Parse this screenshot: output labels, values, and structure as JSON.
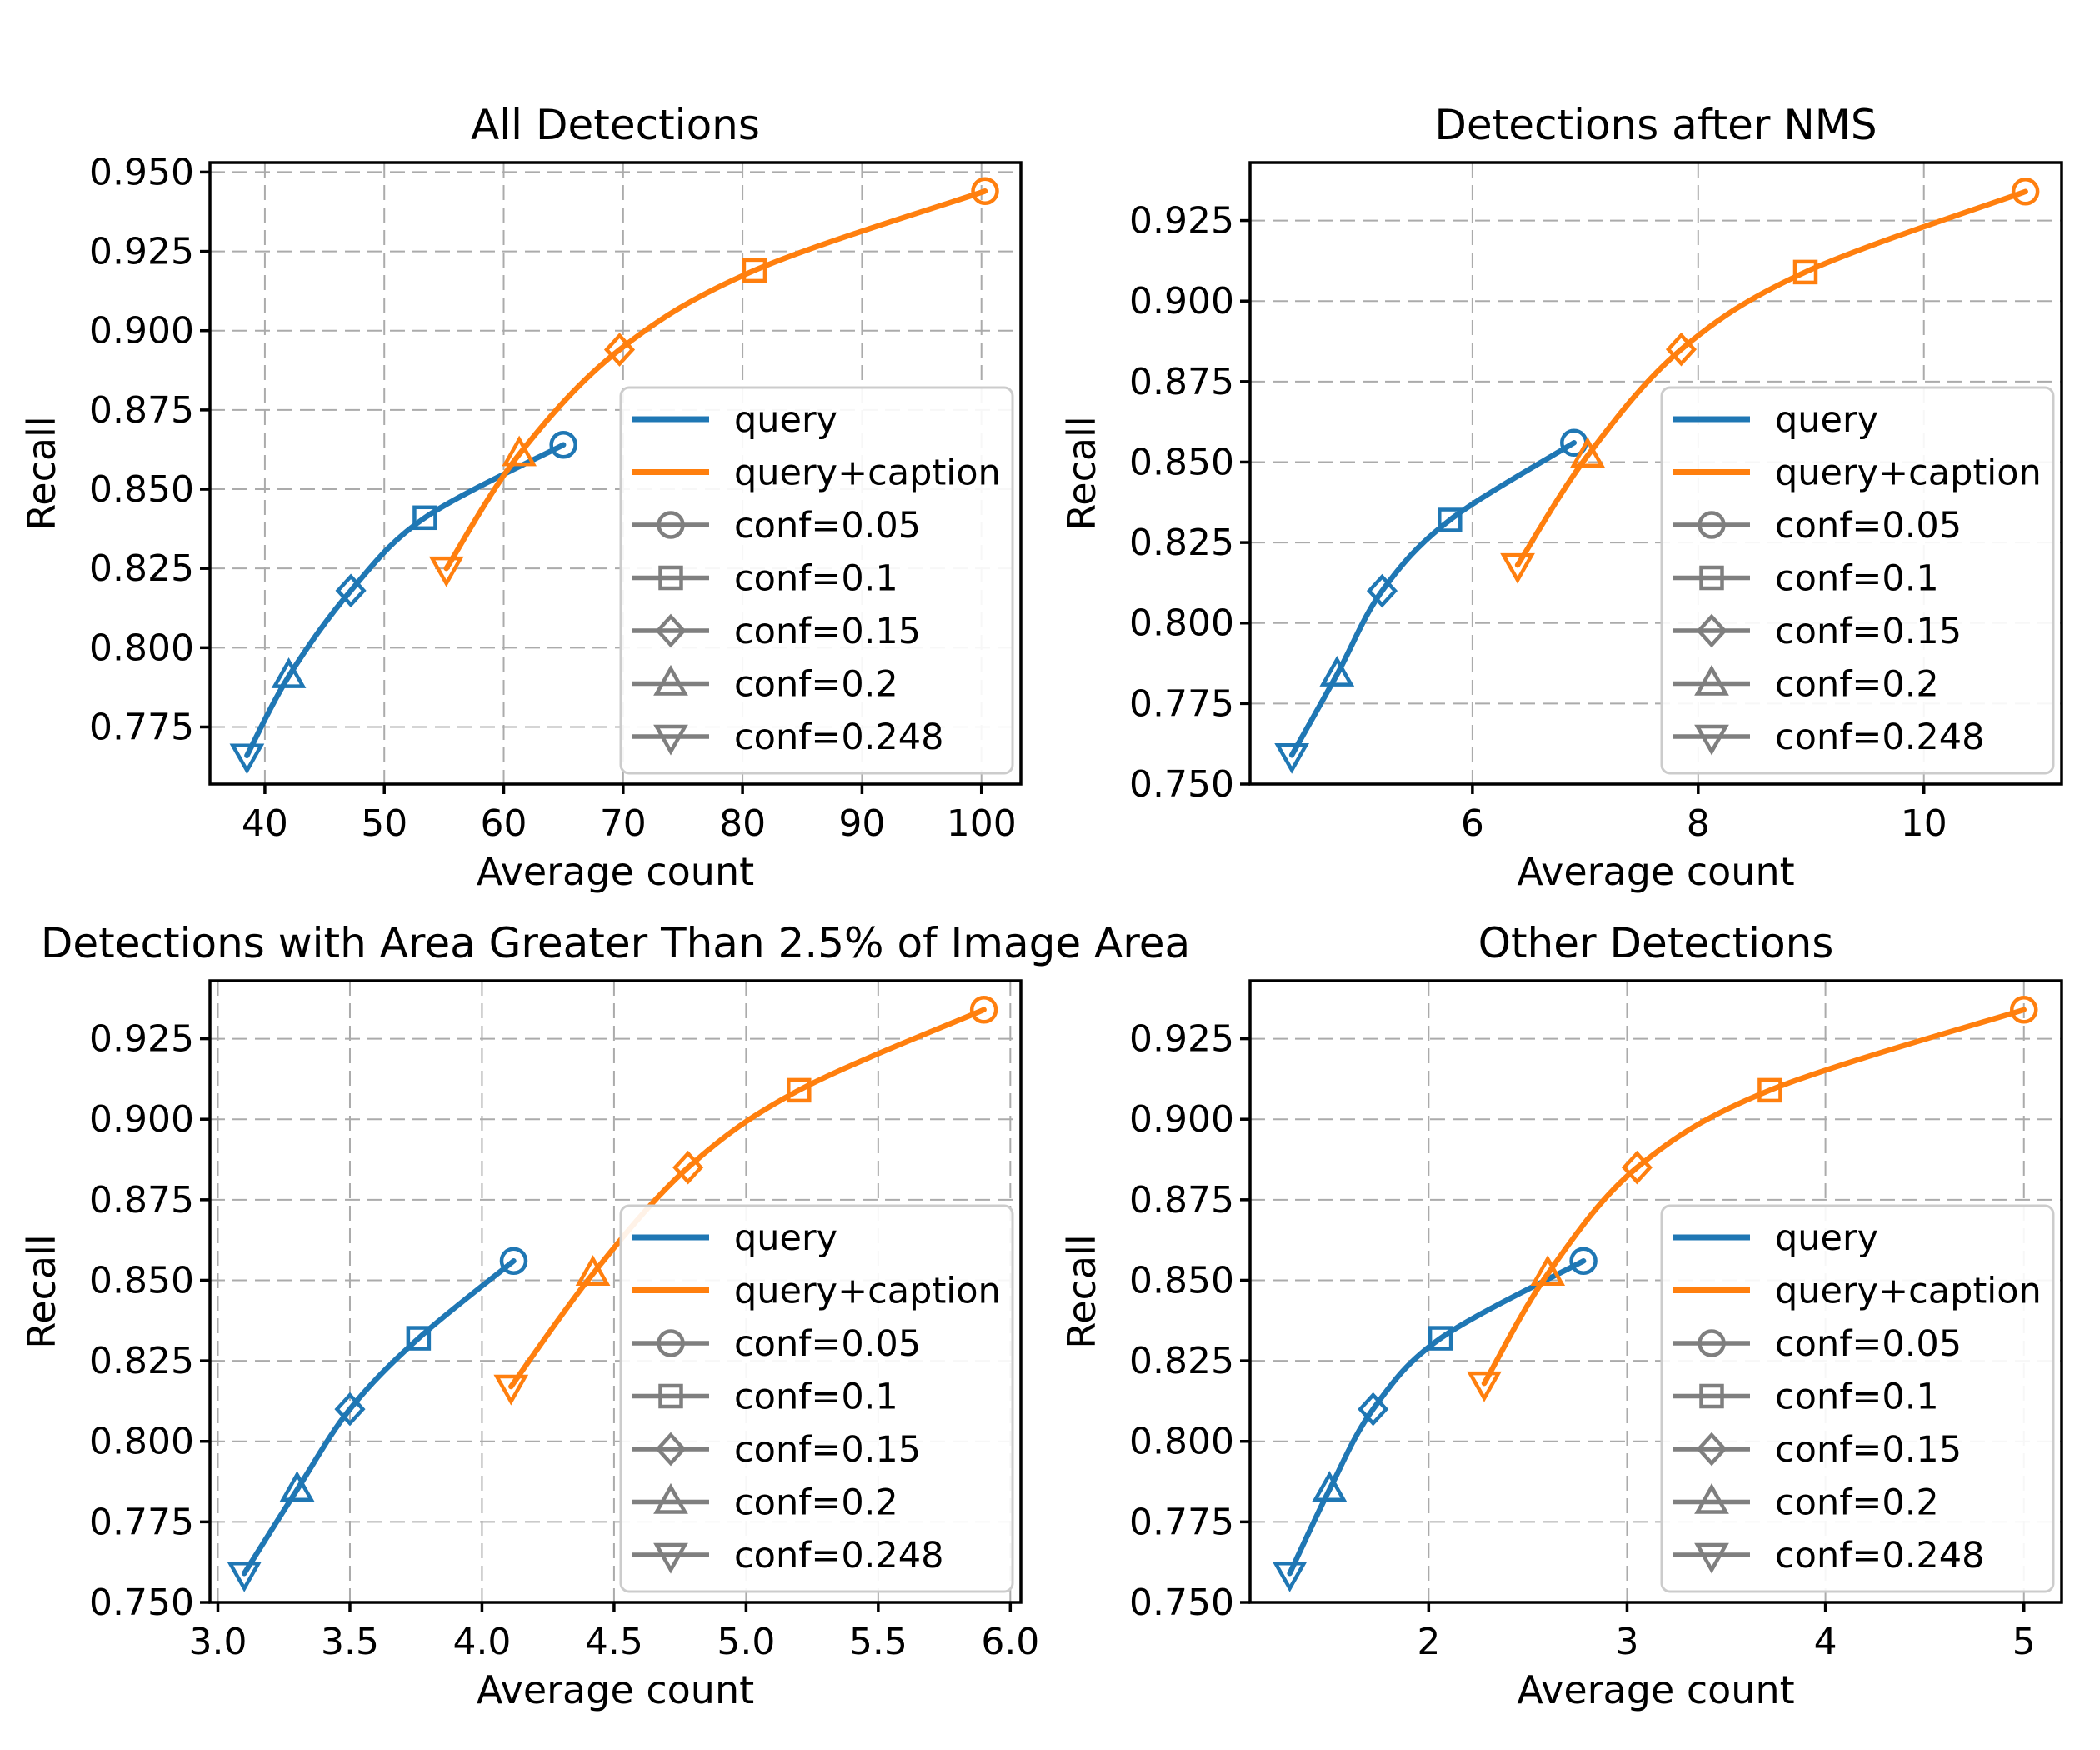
{
  "figure": {
    "background": "#ffffff",
    "text_color": "#000000",
    "grid_color": "#ababab",
    "spine_color": "#000000",
    "legend_border_color": "#cccccc",
    "legend_marker_color": "#7f7f7f",
    "series_colors": {
      "query": "#1f77b4",
      "query+caption": "#ff7f0e"
    }
  },
  "legend": {
    "series_entries": [
      {
        "label": "query",
        "color": "#1f77b4"
      },
      {
        "label": "query+caption",
        "color": "#ff7f0e"
      }
    ],
    "conf_entries": [
      {
        "label": "conf=0.05",
        "marker": "circle"
      },
      {
        "label": "conf=0.1",
        "marker": "square"
      },
      {
        "label": "conf=0.15",
        "marker": "diamond"
      },
      {
        "label": "conf=0.2",
        "marker": "triangle-up"
      },
      {
        "label": "conf=0.248",
        "marker": "triangle-down"
      }
    ]
  },
  "chart_data": [
    {
      "type": "line",
      "title": "All Detections",
      "xlabel": "Average count",
      "ylabel": "Recall",
      "xlim": [
        35.4,
        103.3
      ],
      "ylim": [
        0.757,
        0.953
      ],
      "grid": true,
      "legend_position": "center-right",
      "xticks": [
        {
          "v": 40,
          "label": "40"
        },
        {
          "v": 50,
          "label": "50"
        },
        {
          "v": 60,
          "label": "60"
        },
        {
          "v": 70,
          "label": "70"
        },
        {
          "v": 80,
          "label": "80"
        },
        {
          "v": 90,
          "label": "90"
        },
        {
          "v": 100,
          "label": "100"
        }
      ],
      "yticks": [
        {
          "v": 0.775,
          "label": "0.775"
        },
        {
          "v": 0.8,
          "label": "0.800"
        },
        {
          "v": 0.825,
          "label": "0.825"
        },
        {
          "v": 0.85,
          "label": "0.850"
        },
        {
          "v": 0.875,
          "label": "0.875"
        },
        {
          "v": 0.9,
          "label": "0.900"
        },
        {
          "v": 0.925,
          "label": "0.925"
        },
        {
          "v": 0.95,
          "label": "0.950"
        }
      ],
      "series": [
        {
          "name": "query",
          "color": "#1f77b4",
          "points": [
            {
              "conf": 0.05,
              "marker": "circle",
              "x": 65.0,
              "y": 0.864
            },
            {
              "conf": 0.1,
              "marker": "square",
              "x": 53.4,
              "y": 0.841
            },
            {
              "conf": 0.15,
              "marker": "diamond",
              "x": 47.2,
              "y": 0.818
            },
            {
              "conf": 0.2,
              "marker": "triangle-up",
              "x": 42.0,
              "y": 0.791
            },
            {
              "conf": 0.248,
              "marker": "triangle-down",
              "x": 38.5,
              "y": 0.766
            }
          ]
        },
        {
          "name": "query+caption",
          "color": "#ff7f0e",
          "points": [
            {
              "conf": 0.05,
              "marker": "circle",
              "x": 100.3,
              "y": 0.944
            },
            {
              "conf": 0.1,
              "marker": "square",
              "x": 81.0,
              "y": 0.919
            },
            {
              "conf": 0.15,
              "marker": "diamond",
              "x": 69.7,
              "y": 0.894
            },
            {
              "conf": 0.2,
              "marker": "triangle-up",
              "x": 61.3,
              "y": 0.861
            },
            {
              "conf": 0.248,
              "marker": "triangle-down",
              "x": 55.2,
              "y": 0.825
            }
          ]
        }
      ]
    },
    {
      "type": "line",
      "title": "Detections after NMS",
      "xlabel": "Average count",
      "ylabel": "Recall",
      "xlim": [
        4.03,
        11.22
      ],
      "ylim": [
        0.75,
        0.943
      ],
      "grid": true,
      "legend_position": "center-right",
      "xticks": [
        {
          "v": 6,
          "label": "6"
        },
        {
          "v": 8,
          "label": "8"
        },
        {
          "v": 10,
          "label": "10"
        }
      ],
      "yticks": [
        {
          "v": 0.75,
          "label": "0.750"
        },
        {
          "v": 0.775,
          "label": "0.775"
        },
        {
          "v": 0.8,
          "label": "0.800"
        },
        {
          "v": 0.825,
          "label": "0.825"
        },
        {
          "v": 0.85,
          "label": "0.850"
        },
        {
          "v": 0.875,
          "label": "0.875"
        },
        {
          "v": 0.9,
          "label": "0.900"
        },
        {
          "v": 0.925,
          "label": "0.925"
        }
      ],
      "series": [
        {
          "name": "query",
          "color": "#1f77b4",
          "points": [
            {
              "conf": 0.05,
              "marker": "circle",
              "x": 6.9,
              "y": 0.856
            },
            {
              "conf": 0.1,
              "marker": "square",
              "x": 5.8,
              "y": 0.832
            },
            {
              "conf": 0.15,
              "marker": "diamond",
              "x": 5.2,
              "y": 0.81
            },
            {
              "conf": 0.2,
              "marker": "triangle-up",
              "x": 4.8,
              "y": 0.784
            },
            {
              "conf": 0.248,
              "marker": "triangle-down",
              "x": 4.4,
              "y": 0.759
            }
          ]
        },
        {
          "name": "query+caption",
          "color": "#ff7f0e",
          "points": [
            {
              "conf": 0.05,
              "marker": "circle",
              "x": 10.9,
              "y": 0.934
            },
            {
              "conf": 0.1,
              "marker": "square",
              "x": 8.95,
              "y": 0.909
            },
            {
              "conf": 0.15,
              "marker": "diamond",
              "x": 7.85,
              "y": 0.885
            },
            {
              "conf": 0.2,
              "marker": "triangle-up",
              "x": 7.02,
              "y": 0.852
            },
            {
              "conf": 0.248,
              "marker": "triangle-down",
              "x": 6.4,
              "y": 0.818
            }
          ]
        }
      ]
    },
    {
      "type": "line",
      "title": "Detections with Area Greater Than 2.5% of Image Area",
      "xlabel": "Average count",
      "ylabel": "Recall",
      "xlim": [
        2.97,
        6.04
      ],
      "ylim": [
        0.75,
        0.943
      ],
      "grid": true,
      "legend_position": "center-right",
      "xticks": [
        {
          "v": 3.0,
          "label": "3.0"
        },
        {
          "v": 3.5,
          "label": "3.5"
        },
        {
          "v": 4.0,
          "label": "4.0"
        },
        {
          "v": 4.5,
          "label": "4.5"
        },
        {
          "v": 5.0,
          "label": "5.0"
        },
        {
          "v": 5.5,
          "label": "5.5"
        },
        {
          "v": 6.0,
          "label": "6.0"
        }
      ],
      "yticks": [
        {
          "v": 0.75,
          "label": "0.750"
        },
        {
          "v": 0.775,
          "label": "0.775"
        },
        {
          "v": 0.8,
          "label": "0.800"
        },
        {
          "v": 0.825,
          "label": "0.825"
        },
        {
          "v": 0.85,
          "label": "0.850"
        },
        {
          "v": 0.875,
          "label": "0.875"
        },
        {
          "v": 0.9,
          "label": "0.900"
        },
        {
          "v": 0.925,
          "label": "0.925"
        }
      ],
      "series": [
        {
          "name": "query",
          "color": "#1f77b4",
          "points": [
            {
              "conf": 0.05,
              "marker": "circle",
              "x": 4.12,
              "y": 0.856
            },
            {
              "conf": 0.1,
              "marker": "square",
              "x": 3.76,
              "y": 0.832
            },
            {
              "conf": 0.15,
              "marker": "diamond",
              "x": 3.5,
              "y": 0.81
            },
            {
              "conf": 0.2,
              "marker": "triangle-up",
              "x": 3.3,
              "y": 0.785
            },
            {
              "conf": 0.248,
              "marker": "triangle-down",
              "x": 3.1,
              "y": 0.759
            }
          ]
        },
        {
          "name": "query+caption",
          "color": "#ff7f0e",
          "points": [
            {
              "conf": 0.05,
              "marker": "circle",
              "x": 5.9,
              "y": 0.934
            },
            {
              "conf": 0.1,
              "marker": "square",
              "x": 5.2,
              "y": 0.909
            },
            {
              "conf": 0.15,
              "marker": "diamond",
              "x": 4.78,
              "y": 0.885
            },
            {
              "conf": 0.2,
              "marker": "triangle-up",
              "x": 4.42,
              "y": 0.852
            },
            {
              "conf": 0.248,
              "marker": "triangle-down",
              "x": 4.11,
              "y": 0.817
            }
          ]
        }
      ]
    },
    {
      "type": "line",
      "title": "Other Detections",
      "xlabel": "Average count",
      "ylabel": "Recall",
      "xlim": [
        1.1,
        5.19
      ],
      "ylim": [
        0.75,
        0.943
      ],
      "grid": true,
      "legend_position": "center-right",
      "xticks": [
        {
          "v": 2,
          "label": "2"
        },
        {
          "v": 3,
          "label": "3"
        },
        {
          "v": 4,
          "label": "4"
        },
        {
          "v": 5,
          "label": "5"
        }
      ],
      "yticks": [
        {
          "v": 0.75,
          "label": "0.750"
        },
        {
          "v": 0.775,
          "label": "0.775"
        },
        {
          "v": 0.8,
          "label": "0.800"
        },
        {
          "v": 0.825,
          "label": "0.825"
        },
        {
          "v": 0.85,
          "label": "0.850"
        },
        {
          "v": 0.875,
          "label": "0.875"
        },
        {
          "v": 0.9,
          "label": "0.900"
        },
        {
          "v": 0.925,
          "label": "0.925"
        }
      ],
      "series": [
        {
          "name": "query",
          "color": "#1f77b4",
          "points": [
            {
              "conf": 0.05,
              "marker": "circle",
              "x": 2.78,
              "y": 0.856
            },
            {
              "conf": 0.1,
              "marker": "square",
              "x": 2.06,
              "y": 0.832
            },
            {
              "conf": 0.15,
              "marker": "diamond",
              "x": 1.72,
              "y": 0.81
            },
            {
              "conf": 0.2,
              "marker": "triangle-up",
              "x": 1.5,
              "y": 0.785
            },
            {
              "conf": 0.248,
              "marker": "triangle-down",
              "x": 1.3,
              "y": 0.759
            }
          ]
        },
        {
          "name": "query+caption",
          "color": "#ff7f0e",
          "points": [
            {
              "conf": 0.05,
              "marker": "circle",
              "x": 5.0,
              "y": 0.934
            },
            {
              "conf": 0.1,
              "marker": "square",
              "x": 3.72,
              "y": 0.909
            },
            {
              "conf": 0.15,
              "marker": "diamond",
              "x": 3.05,
              "y": 0.885
            },
            {
              "conf": 0.2,
              "marker": "triangle-up",
              "x": 2.6,
              "y": 0.852
            },
            {
              "conf": 0.248,
              "marker": "triangle-down",
              "x": 2.28,
              "y": 0.818
            }
          ]
        }
      ]
    }
  ]
}
